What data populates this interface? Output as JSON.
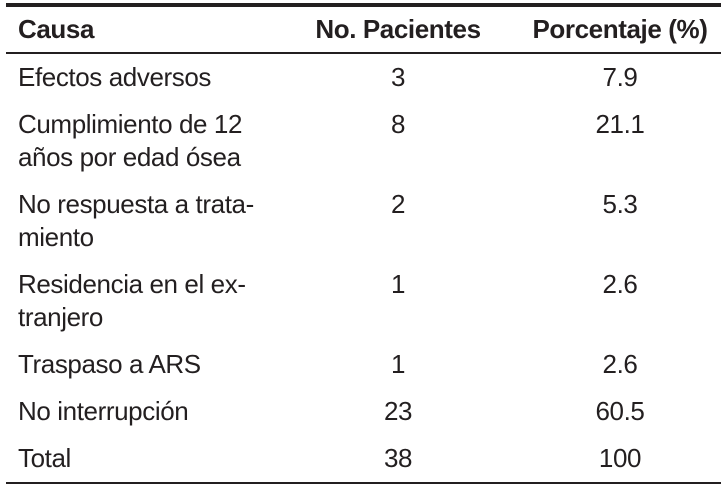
{
  "table": {
    "columns": [
      {
        "label": "Causa"
      },
      {
        "label": "No. Pacientes"
      },
      {
        "label": "Porcentaje (%)"
      }
    ],
    "rows": [
      {
        "causa": "Efectos adversos",
        "pacientes": "3",
        "porcentaje": "7.9"
      },
      {
        "causa": "Cumplimiento de 12\naños por edad ósea",
        "pacientes": "8",
        "porcentaje": "21.1"
      },
      {
        "causa": "No respuesta a trata-\nmiento",
        "pacientes": "2",
        "porcentaje": "5.3"
      },
      {
        "causa": "Residencia en el ex-\ntranjero",
        "pacientes": "1",
        "porcentaje": "2.6"
      },
      {
        "causa": "Traspaso a ARS",
        "pacientes": "1",
        "porcentaje": "2.6"
      },
      {
        "causa": "No interrupción",
        "pacientes": "23",
        "porcentaje": "60.5"
      },
      {
        "causa": "Total",
        "pacientes": "38",
        "porcentaje": "100"
      }
    ],
    "colors": {
      "text": "#231f20",
      "rule": "#231f20",
      "background": "#ffffff"
    }
  }
}
